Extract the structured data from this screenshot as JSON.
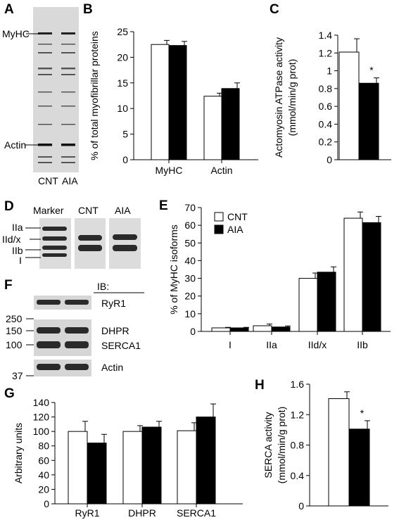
{
  "panels": {
    "A": {
      "letter": "A",
      "band_labels": [
        "MyHC",
        "Actin"
      ],
      "lanes": [
        "CNT",
        "AIA"
      ]
    },
    "D": {
      "letter": "D",
      "lanes": [
        "Marker",
        "CNT",
        "AIA"
      ],
      "isoform_labels": [
        "IIa",
        "IId/x",
        "IIb",
        "I"
      ]
    },
    "F": {
      "letter": "F",
      "ib_header": "IB:",
      "mw_markers": [
        "250",
        "150",
        "100",
        "37"
      ],
      "blot_labels": [
        "RyR1",
        "DHPR",
        "SERCA1",
        "Actin"
      ]
    }
  },
  "legend": {
    "cnt": "CNT",
    "aia": "AIA"
  },
  "colors": {
    "cnt_fill": "#ffffff",
    "aia_fill": "#000000",
    "gel_bg": "#d6d6d6",
    "band": "#2a2a2a"
  },
  "chart_data": [
    {
      "panel": "B",
      "type": "bar",
      "title": "",
      "categories": [
        "MyHC",
        "Actin"
      ],
      "series": [
        {
          "name": "CNT",
          "values": [
            22.5,
            12.4
          ],
          "errors": [
            0.8,
            0.6
          ]
        },
        {
          "name": "AIA",
          "values": [
            22.3,
            13.9
          ],
          "errors": [
            0.8,
            1.1
          ]
        }
      ],
      "xlabel": "",
      "ylabel": "% of total myofibrillar proteins",
      "ylim": [
        0,
        25
      ],
      "yticks": [
        "0",
        "5",
        "10",
        "15",
        "20",
        "25"
      ],
      "annotations": []
    },
    {
      "panel": "C",
      "type": "bar",
      "title": "",
      "categories": [
        ""
      ],
      "series": [
        {
          "name": "CNT",
          "values": [
            1.21
          ],
          "errors": [
            0.15
          ]
        },
        {
          "name": "AIA",
          "values": [
            0.86
          ],
          "errors": [
            0.06
          ]
        }
      ],
      "xlabel": "",
      "ylabel": "Actomyosin ATPase activity",
      "ylabel2": "(mmol/min/g prot)",
      "ylim": [
        0,
        1.4
      ],
      "yticks": [
        "0",
        "0.2",
        "0.4",
        "0.6",
        "0.8",
        "1",
        "1.2",
        "1.4"
      ],
      "annotations": [
        "*"
      ]
    },
    {
      "panel": "E",
      "type": "bar",
      "title": "",
      "categories": [
        "I",
        "IIa",
        "IId/x",
        "IIb"
      ],
      "series": [
        {
          "name": "CNT",
          "values": [
            2,
            3.2,
            30,
            64
          ],
          "errors": [
            0.3,
            1,
            3,
            3.5
          ]
        },
        {
          "name": "AIA",
          "values": [
            2,
            2.5,
            33.5,
            61.5
          ],
          "errors": [
            0.3,
            0.6,
            3,
            3.5
          ]
        }
      ],
      "xlabel": "",
      "ylabel": "% of MyHC isoforms",
      "ylim": [
        0,
        70
      ],
      "yticks": [
        "0",
        "10",
        "20",
        "30",
        "40",
        "50",
        "60",
        "70"
      ],
      "legend_position": "top-left",
      "annotations": []
    },
    {
      "panel": "G",
      "type": "bar",
      "title": "",
      "categories": [
        "RyR1",
        "DHPR",
        "SERCA1"
      ],
      "series": [
        {
          "name": "CNT",
          "values": [
            100,
            100,
            101
          ],
          "errors": [
            14,
            8,
            11
          ]
        },
        {
          "name": "AIA",
          "values": [
            84,
            106,
            120
          ],
          "errors": [
            12,
            8,
            18
          ]
        }
      ],
      "xlabel": "",
      "ylabel": "Arbitrary units",
      "ylim": [
        0,
        140
      ],
      "yticks": [
        "0",
        "20",
        "40",
        "60",
        "80",
        "100",
        "120",
        "140"
      ],
      "annotations": []
    },
    {
      "panel": "H",
      "type": "bar",
      "title": "",
      "categories": [
        ""
      ],
      "series": [
        {
          "name": "CNT",
          "values": [
            1.41
          ],
          "errors": [
            0.09
          ]
        },
        {
          "name": "AIA",
          "values": [
            1.01
          ],
          "errors": [
            0.11
          ]
        }
      ],
      "xlabel": "",
      "ylabel": "SERCA activity",
      "ylabel2": "(mmol/min/g prot)",
      "ylim": [
        0,
        1.6
      ],
      "yticks": [
        "0",
        "0.4",
        "0.8",
        "1.2",
        "1.6"
      ],
      "annotations": [
        "*"
      ]
    }
  ],
  "panel_letters": [
    "B",
    "C",
    "E",
    "G",
    "H"
  ]
}
